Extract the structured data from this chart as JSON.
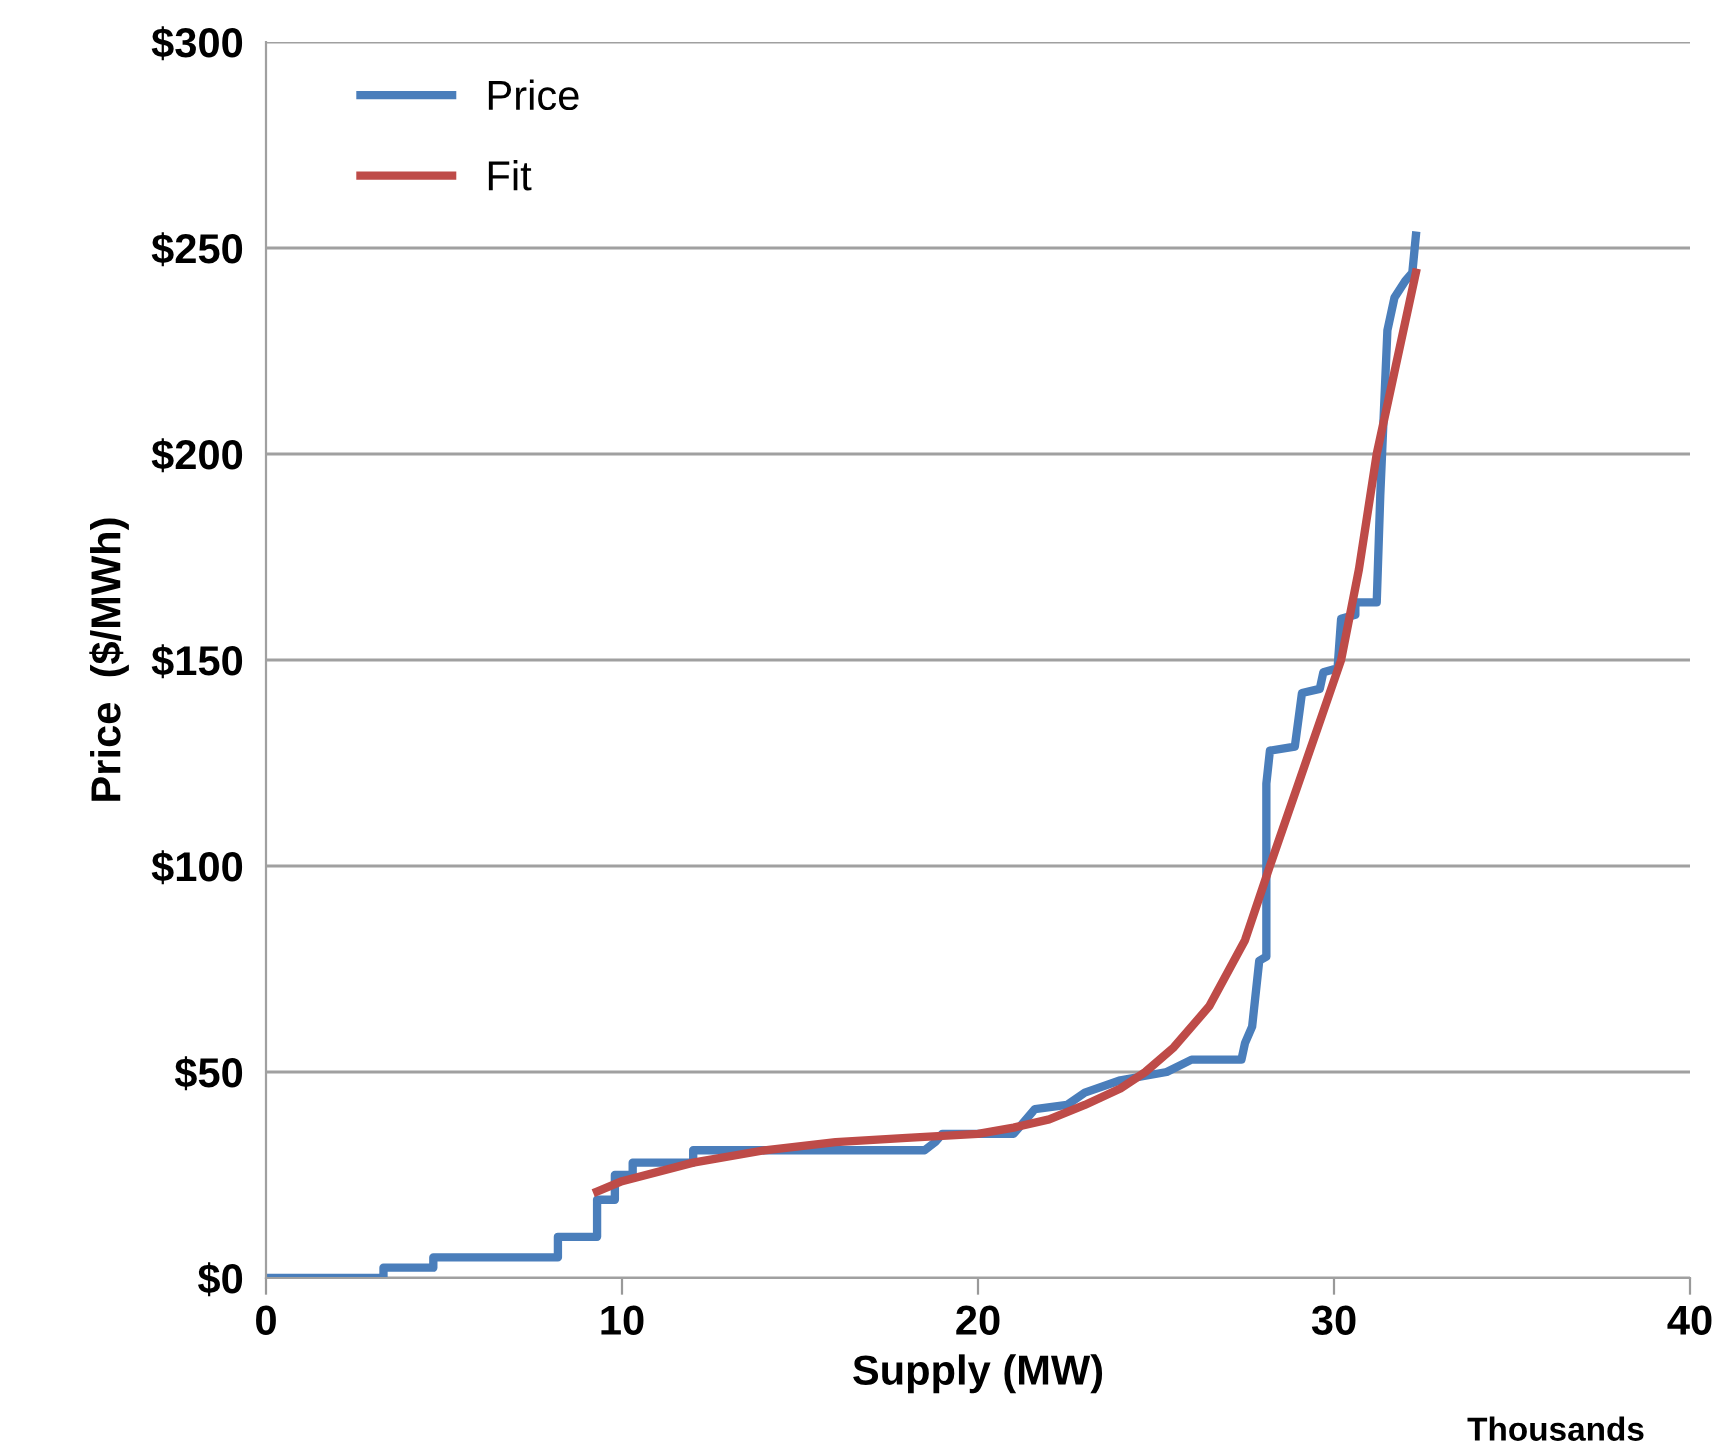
{
  "chart_data": {
    "type": "line",
    "xlabel": "Supply (MW)",
    "ylabel": "Price  ($/MWh)",
    "annotations": [
      "Thousands"
    ],
    "xlim": [
      0,
      40
    ],
    "xticks": [
      0,
      10,
      20,
      30,
      40
    ],
    "ylim": [
      0,
      300
    ],
    "yticks": [
      {
        "value": 0,
        "label": "$0"
      },
      {
        "value": 50,
        "label": "$50"
      },
      {
        "value": 100,
        "label": "$100"
      },
      {
        "value": 150,
        "label": "$150"
      },
      {
        "value": 200,
        "label": "$200"
      },
      {
        "value": 250,
        "label": "$250"
      },
      {
        "value": 300,
        "label": "$300"
      }
    ],
    "grid": "y",
    "legend": "top left",
    "marker": "none",
    "line_style": "solid",
    "series": [
      {
        "name": "Price",
        "color": "#4a7ebb",
        "x": [
          0,
          3.3,
          3.3,
          4.7,
          4.7,
          8.2,
          8.2,
          9.3,
          9.3,
          9.8,
          9.8,
          10.3,
          10.3,
          12,
          12,
          18.5,
          18.8,
          19,
          21,
          21.3,
          21.6,
          22.5,
          23,
          24,
          25.3,
          26,
          27.4,
          27.5,
          27.7,
          27.9,
          28.1,
          28.1,
          28.2,
          28.9,
          29.1,
          29.6,
          29.7,
          30.1,
          30.2,
          30.6,
          30.6,
          31.2,
          31.3,
          31.5,
          31.7,
          32,
          32.2,
          32.3
        ],
        "values": [
          0,
          0,
          2.5,
          2.5,
          5,
          5,
          10,
          10,
          19,
          19,
          25,
          25,
          28,
          28,
          31,
          31,
          33,
          35,
          35,
          38,
          41,
          42,
          45,
          48,
          50,
          53,
          53,
          57,
          61,
          77,
          78,
          120,
          128,
          129,
          142,
          143,
          147,
          148,
          160,
          161,
          164,
          164,
          190,
          230,
          238,
          242,
          244,
          253
        ]
      },
      {
        "name": "Fit",
        "color": "#be4b48",
        "x": [
          9.3,
          10,
          12,
          14,
          16,
          18,
          20,
          21,
          22,
          23,
          24,
          24.7,
          25.5,
          26.5,
          27.5,
          28.2,
          29,
          29.6,
          30.2,
          30.7,
          31.2,
          31.7,
          32.3
        ],
        "values": [
          21,
          23.5,
          28,
          31,
          33,
          34,
          35,
          36.5,
          38.5,
          42,
          46,
          50,
          56,
          66,
          82,
          100,
          120,
          135,
          150,
          172,
          200,
          220,
          244
        ]
      }
    ]
  }
}
